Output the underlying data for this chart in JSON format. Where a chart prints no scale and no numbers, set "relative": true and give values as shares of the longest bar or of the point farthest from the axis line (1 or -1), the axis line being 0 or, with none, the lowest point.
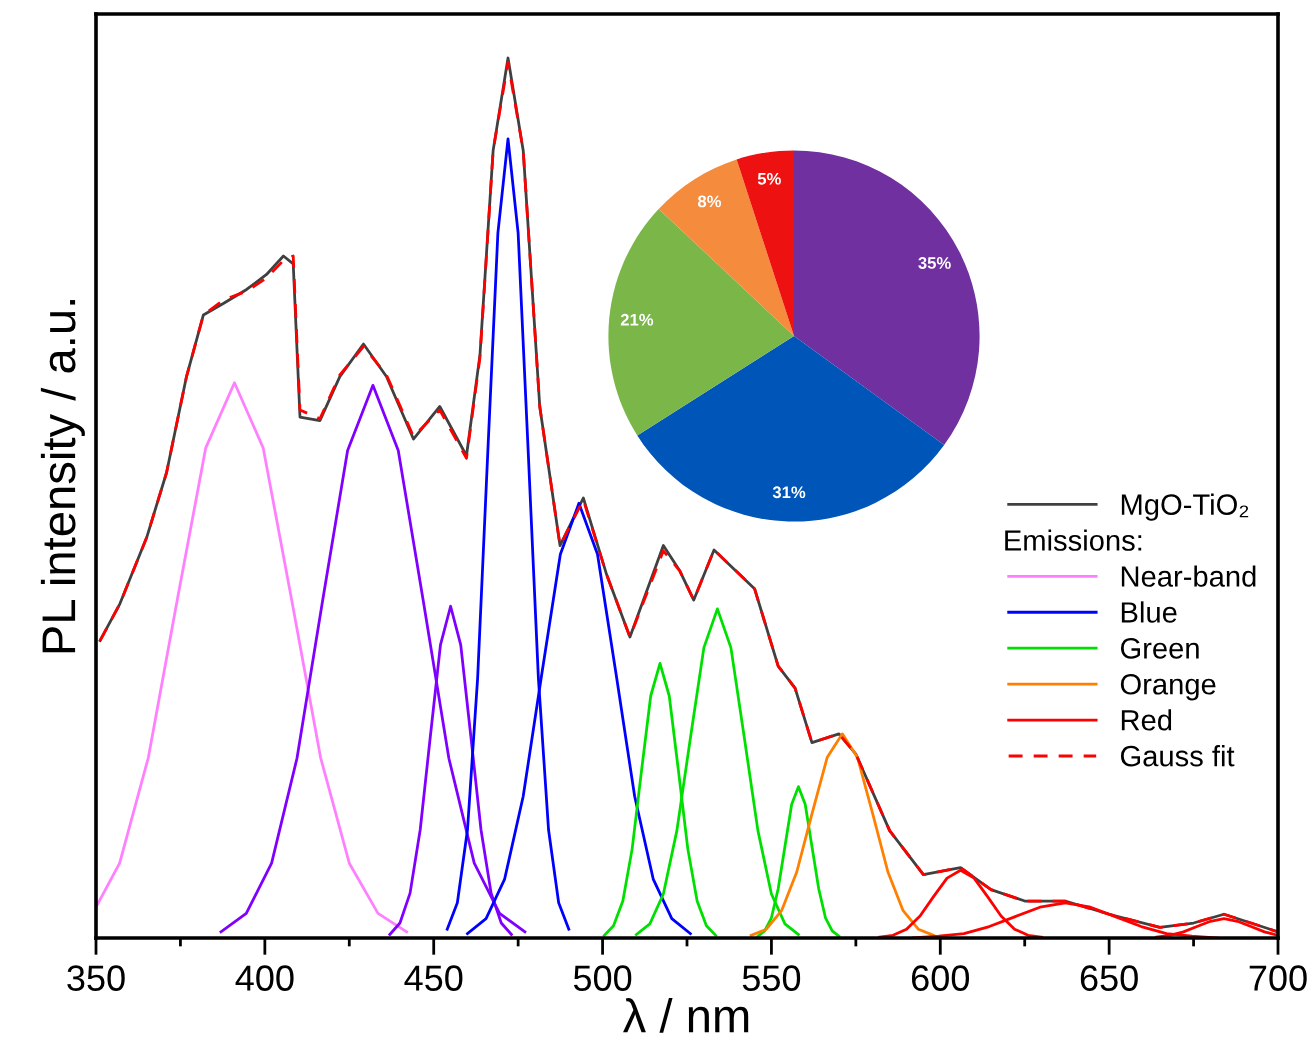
{
  "chart_data": [
    {
      "type": "line",
      "relative": true,
      "xlabel": "λ / nm",
      "ylabel": "PL intensity / a.u.",
      "legend_title": "Emissions:",
      "legend": "right",
      "grid": false,
      "tick_labels": "x",
      "xlim": [
        350,
        700
      ],
      "xticks": [
        350,
        400,
        450,
        500,
        550,
        600,
        650,
        700
      ],
      "series": [
        {
          "name": "MgO-TiO₂",
          "color": "#404040",
          "line_style": "solid",
          "x": [
            351.2,
            357.1,
            365,
            370.9,
            376.8,
            381.8,
            387.7,
            394.6,
            400.5,
            405.5,
            408.4,
            410.4,
            416.3,
            422.2,
            429.2,
            436,
            444,
            451.8,
            459.7,
            463.7,
            467.6,
            472,
            476.5,
            481.4,
            487.4,
            494.3,
            501.2,
            508.1,
            518,
            522.9,
            527,
            533,
            545,
            552,
            557,
            562,
            570,
            575,
            585,
            595,
            606,
            615,
            625,
            637,
            650,
            665,
            675,
            684,
            692,
            700
          ],
          "values": [
            0.338,
            0.38,
            0.455,
            0.529,
            0.638,
            0.708,
            0.721,
            0.737,
            0.754,
            0.775,
            0.766,
            0.592,
            0.588,
            0.638,
            0.675,
            0.638,
            0.567,
            0.604,
            0.548,
            0.663,
            0.895,
            1,
            0.895,
            0.604,
            0.446,
            0.5,
            0.413,
            0.342,
            0.446,
            0.417,
            0.384,
            0.441,
            0.397,
            0.309,
            0.284,
            0.222,
            0.232,
            0.209,
            0.122,
            0.072,
            0.08,
            0.055,
            0.042,
            0.042,
            0.027,
            0.012,
            0.017,
            0.027,
            0.017,
            0.007
          ]
        },
        {
          "name": "Near-band",
          "color": "#ff80ff",
          "line_style": "solid",
          "x": [
            350,
            357,
            365.5,
            374,
            382.5,
            391,
            399.5,
            408,
            416.5,
            425,
            433.5,
            442
          ],
          "values": [
            0.035,
            0.085,
            0.205,
            0.383,
            0.557,
            0.631,
            0.557,
            0.383,
            0.205,
            0.085,
            0.028,
            0.007
          ]
        },
        {
          "color": "#8000ff",
          "line_style": "solid",
          "x": [
            387,
            394.5,
            402,
            409.5,
            417,
            424.5,
            432,
            439.5,
            447,
            454.5,
            462,
            469.5,
            477
          ],
          "values": [
            0.007,
            0.028,
            0.085,
            0.204,
            0.381,
            0.554,
            0.628,
            0.554,
            0.381,
            0.204,
            0.085,
            0.028,
            0.007
          ]
        },
        {
          "color": "#8000ff",
          "line_style": "solid",
          "x": [
            437,
            440,
            443,
            446,
            449,
            452,
            455,
            458,
            461,
            464,
            467,
            470,
            473
          ],
          "values": [
            0.004,
            0.017,
            0.051,
            0.123,
            0.229,
            0.333,
            0.377,
            0.333,
            0.229,
            0.123,
            0.051,
            0.017,
            0.004
          ]
        },
        {
          "name": "Blue",
          "color": "#0000ff",
          "line_style": "solid",
          "x": [
            454,
            457,
            460,
            463,
            466,
            469,
            472,
            475,
            478,
            481,
            484,
            487,
            490
          ],
          "values": [
            0.01,
            0.04,
            0.123,
            0.295,
            0.551,
            0.801,
            0.908,
            0.801,
            0.551,
            0.295,
            0.123,
            0.04,
            0.01
          ]
        },
        {
          "color": "#0000ff",
          "line_style": "solid",
          "x": [
            460,
            465.5,
            471,
            476.5,
            482,
            487.5,
            493,
            498.5,
            504,
            509.5,
            515,
            520.5,
            526
          ],
          "values": [
            0.005,
            0.022,
            0.067,
            0.161,
            0.3,
            0.436,
            0.494,
            0.436,
            0.3,
            0.161,
            0.067,
            0.022,
            0.005
          ]
        },
        {
          "name": "Green",
          "color": "#00e000",
          "line_style": "solid",
          "x": [
            500.5,
            503.25,
            506,
            508.75,
            511.5,
            514.25,
            517,
            519.75,
            522.5,
            525.25,
            528,
            530.75,
            533.5
          ],
          "values": [
            0.003,
            0.014,
            0.042,
            0.101,
            0.189,
            0.275,
            0.312,
            0.275,
            0.189,
            0.101,
            0.042,
            0.014,
            0.003
          ]
        },
        {
          "color": "#00e000",
          "line_style": "solid",
          "x": [
            510,
            514,
            518,
            522,
            526,
            530,
            534,
            538,
            542,
            546,
            550,
            554,
            558
          ],
          "values": [
            0.004,
            0.016,
            0.05,
            0.122,
            0.227,
            0.33,
            0.374,
            0.33,
            0.227,
            0.122,
            0.05,
            0.016,
            0.004
          ]
        },
        {
          "color": "#00e000",
          "line_style": "solid",
          "x": [
            546,
            548,
            550,
            552,
            554,
            556,
            558,
            560,
            562,
            564,
            566,
            568,
            570
          ],
          "values": [
            0.002,
            0.008,
            0.023,
            0.056,
            0.104,
            0.152,
            0.172,
            0.152,
            0.104,
            0.056,
            0.023,
            0.008,
            0.002
          ]
        },
        {
          "name": "Orange",
          "color": "#ff8000",
          "line_style": "solid",
          "x": [
            544,
            548.5,
            553,
            557.5,
            562,
            566.5,
            571,
            575.5,
            580,
            584.5,
            589,
            593.5,
            598
          ],
          "values": [
            0.003,
            0.01,
            0.031,
            0.075,
            0.141,
            0.205,
            0.232,
            0.205,
            0.141,
            0.075,
            0.031,
            0.01,
            0.003
          ]
        },
        {
          "name": "Red",
          "color": "#ff0000",
          "line_style": "solid",
          "x": [
            582,
            586,
            590,
            594,
            598,
            602,
            606,
            610,
            614,
            618,
            622,
            626,
            630
          ],
          "values": [
            0.001,
            0.003,
            0.01,
            0.025,
            0.047,
            0.068,
            0.077,
            0.068,
            0.047,
            0.025,
            0.01,
            0.003,
            0.001
          ]
        },
        {
          "color": "#ff0000",
          "line_style": "solid",
          "x": [
            592,
            599.5,
            607,
            614.5,
            622,
            629.5,
            637,
            644.5,
            652,
            659.5,
            667,
            674.5,
            682
          ],
          "values": [
            0,
            0.002,
            0.005,
            0.013,
            0.024,
            0.035,
            0.04,
            0.035,
            0.024,
            0.013,
            0.005,
            0.002,
            0
          ]
        },
        {
          "color": "#ff0000",
          "line_style": "solid",
          "x": [
            664,
            668,
            672,
            676,
            680,
            684,
            688,
            692,
            696,
            700
          ],
          "values": [
            0.001,
            0.003,
            0.007,
            0.013,
            0.019,
            0.022,
            0.019,
            0.013,
            0.007,
            0.003
          ]
        },
        {
          "name": "Gauss fit",
          "color": "#ff0000",
          "line_style": "dashed",
          "x": [
            351.2,
            357.1,
            365,
            370.9,
            376.8,
            381.8,
            387.7,
            394.6,
            400.5,
            405.5,
            408.4,
            410.4,
            416.3,
            422.2,
            429.2,
            436,
            444,
            451.8,
            459.7,
            463.7,
            467.6,
            472,
            476.5,
            481.4,
            487.4,
            494.3,
            501.2,
            508.1,
            518,
            522.9,
            527,
            533,
            545,
            552,
            557,
            562,
            570,
            575,
            585,
            595,
            606,
            615,
            625,
            637,
            650,
            665,
            675,
            684,
            692,
            700
          ],
          "values": [
            0.338,
            0.38,
            0.455,
            0.529,
            0.638,
            0.708,
            0.725,
            0.735,
            0.75,
            0.77,
            0.775,
            0.6,
            0.59,
            0.64,
            0.672,
            0.64,
            0.57,
            0.6,
            0.545,
            0.66,
            0.895,
            0.995,
            0.895,
            0.604,
            0.446,
            0.498,
            0.413,
            0.342,
            0.44,
            0.417,
            0.384,
            0.441,
            0.397,
            0.309,
            0.284,
            0.222,
            0.232,
            0.209,
            0.122,
            0.072,
            0.08,
            0.055,
            0.042,
            0.042,
            0.027,
            0.012,
            0.017,
            0.027,
            0.017,
            0.007
          ]
        }
      ]
    },
    {
      "type": "pie",
      "categories": [
        null,
        null,
        null,
        null,
        null
      ],
      "values": [
        35,
        31,
        21,
        8,
        5
      ],
      "colors": [
        "#7030a0",
        "#0055b8",
        "#7ab648",
        "#f58b3c",
        "#ee1111"
      ],
      "value_labels": [
        "35%",
        "31%",
        "21%",
        "8%",
        "5%"
      ]
    }
  ]
}
